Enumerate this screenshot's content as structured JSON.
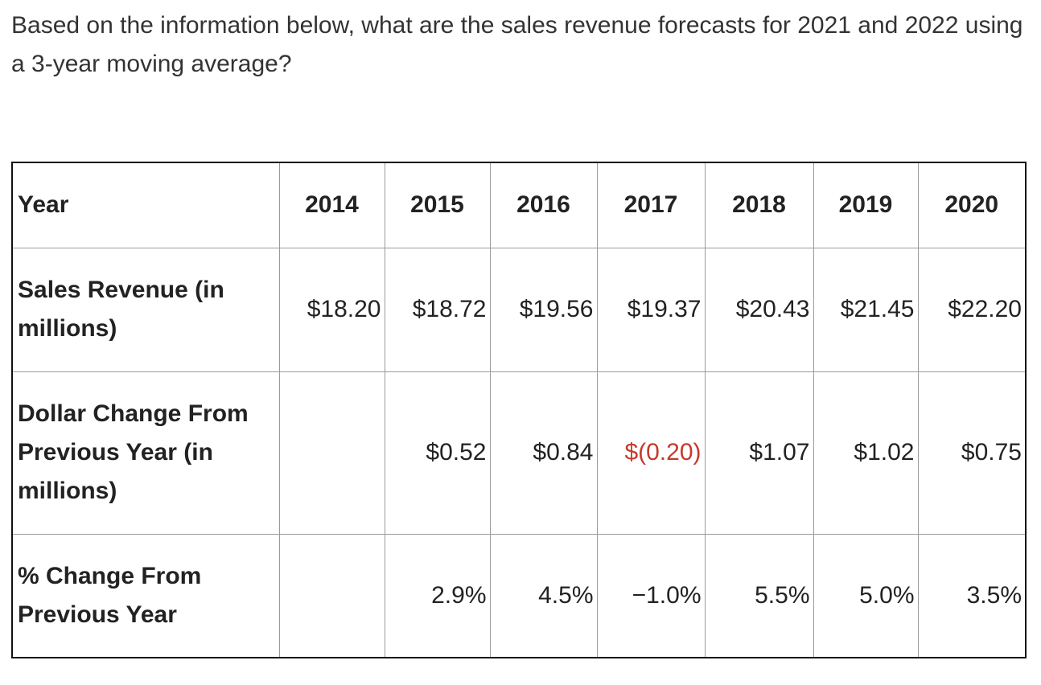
{
  "question": "Based on the information below, what are the sales revenue forecasts for 2021 and 2022 using a 3-year moving average?",
  "table": {
    "header_label": "Year",
    "years": [
      "2014",
      "2015",
      "2016",
      "2017",
      "2018",
      "2019",
      "2020"
    ],
    "rows": [
      {
        "label": "Sales Revenue (in millions)",
        "values": [
          "$18.20",
          "$18.72",
          "$19.56",
          "$19.37",
          "$20.43",
          "$21.45",
          "$22.20"
        ]
      },
      {
        "label": "Dollar Change From Previous Year (in millions)",
        "values": [
          "",
          "$0.52",
          "$0.84",
          "$(0.20)",
          "$1.07",
          "$1.02",
          "$0.75"
        ]
      },
      {
        "label": "% Change From Previous Year",
        "values": [
          "",
          "2.9%",
          "4.5%",
          "−1.0%",
          "5.5%",
          "5.0%",
          "3.5%"
        ]
      }
    ]
  },
  "colors": {
    "negative_value": "#c8392b",
    "text": "#222222",
    "outer_border": "#111111",
    "inner_border": "#9a9a9a"
  }
}
